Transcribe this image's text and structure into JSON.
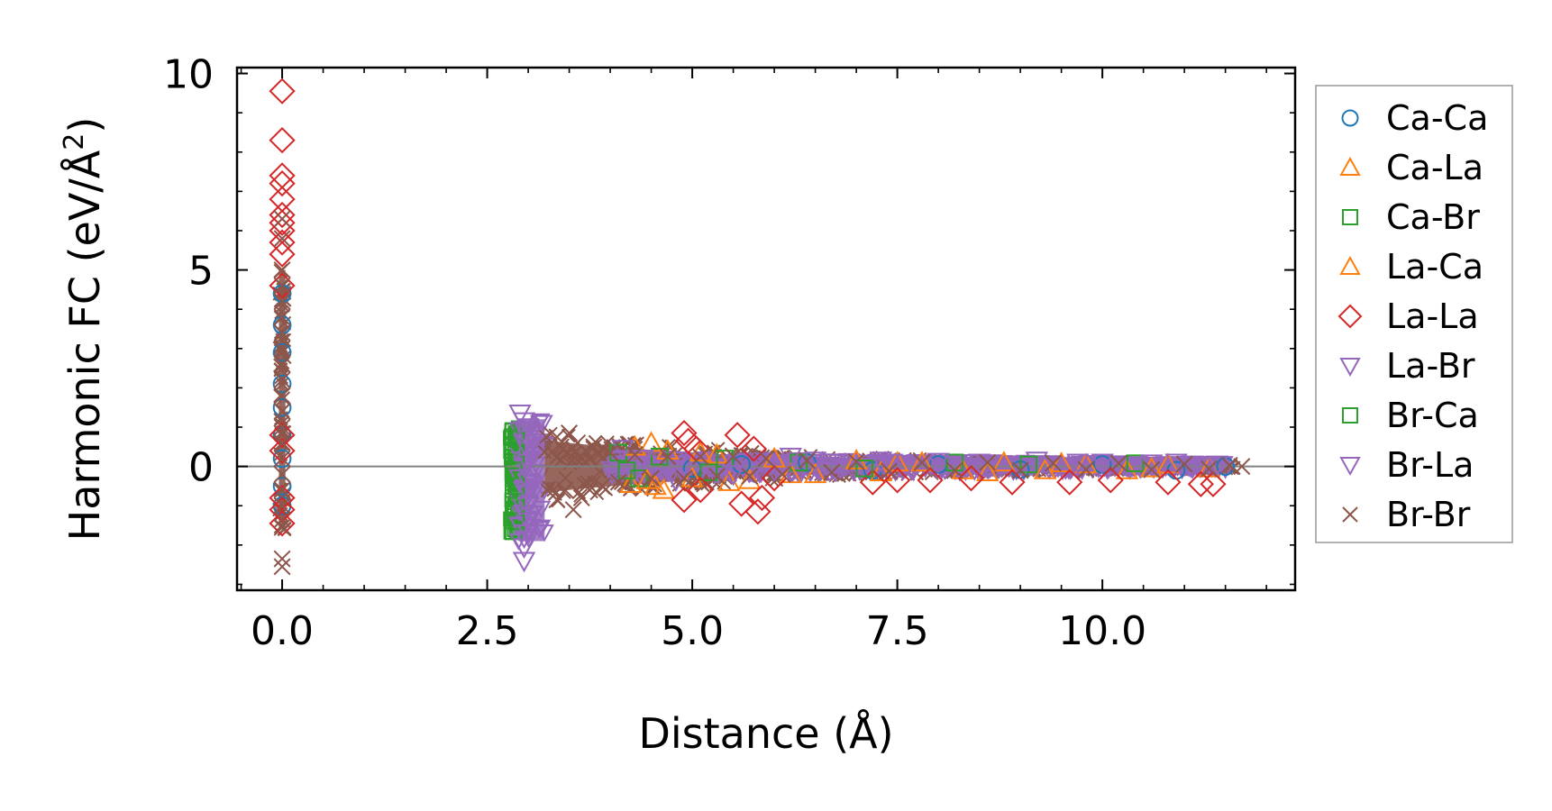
{
  "chart_data": {
    "type": "scatter",
    "title": "",
    "xlabel": "Distance (Å)",
    "ylabel_main": "Harmonic FC (eV/Å",
    "ylabel_sup": "2",
    "ylabel_close": ")",
    "xlim": [
      -0.55,
      12.35
    ],
    "ylim": [
      -3.15,
      10.15
    ],
    "xticks": [
      0.0,
      2.5,
      5.0,
      7.5,
      10.0
    ],
    "xtick_labels": [
      "0.0",
      "2.5",
      "5.0",
      "7.5",
      "10.0"
    ],
    "yticks": [
      0,
      5,
      10
    ],
    "ytick_labels": [
      "0",
      "5",
      "10"
    ],
    "xminor_step": 0.5,
    "yminor_step": 1,
    "zero_line": 0,
    "legend_position": "outside-right",
    "series": [
      {
        "name": "Ca-Ca",
        "marker": "circle",
        "color": "#1f77b4",
        "points": [
          [
            0,
            4.4
          ],
          [
            0,
            3.6
          ],
          [
            0,
            2.9
          ],
          [
            0,
            2.1
          ],
          [
            0,
            1.5
          ],
          [
            0,
            0.8
          ],
          [
            0,
            0.2
          ],
          [
            0,
            -0.5
          ],
          [
            0,
            -1.0
          ],
          [
            5.0,
            -0.05
          ],
          [
            5.6,
            0.05
          ],
          [
            6.4,
            0.1
          ],
          [
            7.2,
            -0.1
          ],
          [
            8.0,
            0.05
          ],
          [
            9.0,
            -0.08
          ],
          [
            10.0,
            0.05
          ],
          [
            10.9,
            -0.1
          ],
          [
            11.5,
            0.0
          ]
        ]
      },
      {
        "name": "Ca-La",
        "marker": "triangle-up",
        "color": "#ff7f0e",
        "points": [
          [
            4.25,
            -0.45
          ],
          [
            4.5,
            0.6
          ],
          [
            4.55,
            -0.5
          ],
          [
            4.7,
            0.4
          ],
          [
            5.0,
            -0.3
          ],
          [
            5.3,
            0.3
          ],
          [
            5.7,
            -0.35
          ],
          [
            6.0,
            0.2
          ],
          [
            6.5,
            -0.2
          ],
          [
            7.0,
            0.15
          ],
          [
            7.3,
            -0.15
          ],
          [
            7.8,
            0.1
          ],
          [
            8.3,
            -0.1
          ],
          [
            8.8,
            0.1
          ],
          [
            9.3,
            -0.1
          ],
          [
            9.8,
            0.05
          ],
          [
            10.3,
            -0.1
          ],
          [
            10.8,
            0.05
          ],
          [
            11.3,
            -0.05
          ]
        ]
      },
      {
        "name": "Ca-Br",
        "marker": "square",
        "color": "#2ca02c",
        "points": [
          [
            2.82,
            0.9
          ],
          [
            2.82,
            0.5
          ],
          [
            2.82,
            0.1
          ],
          [
            2.82,
            -0.3
          ],
          [
            2.82,
            -0.8
          ],
          [
            2.82,
            -1.2
          ],
          [
            2.82,
            -1.65
          ],
          [
            4.1,
            0.35
          ],
          [
            4.35,
            -0.3
          ],
          [
            4.6,
            0.25
          ],
          [
            5.2,
            -0.15
          ],
          [
            6.3,
            0.1
          ],
          [
            8.2,
            0.1
          ],
          [
            10.4,
            0.08
          ]
        ]
      },
      {
        "name": "La-Ca",
        "marker": "triangle-up",
        "color": "#ff7f0e",
        "points": [
          [
            4.3,
            0.5
          ],
          [
            4.45,
            -0.35
          ],
          [
            4.65,
            -0.6
          ],
          [
            5.1,
            0.35
          ],
          [
            5.45,
            -0.4
          ],
          [
            6.2,
            -0.2
          ],
          [
            7.5,
            0.1
          ],
          [
            8.6,
            -0.15
          ],
          [
            9.5,
            0.08
          ],
          [
            10.6,
            -0.05
          ]
        ]
      },
      {
        "name": "La-La",
        "marker": "diamond",
        "color": "#d62728",
        "points": [
          [
            0,
            9.55
          ],
          [
            0,
            8.3
          ],
          [
            0,
            7.4
          ],
          [
            0,
            7.2
          ],
          [
            0,
            6.8
          ],
          [
            0,
            6.4
          ],
          [
            0,
            6.2
          ],
          [
            0,
            6.0
          ],
          [
            0,
            5.7
          ],
          [
            0,
            5.4
          ],
          [
            0,
            4.6
          ],
          [
            0,
            0.8
          ],
          [
            0,
            0.4
          ],
          [
            0,
            -0.8
          ],
          [
            0,
            -1.1
          ],
          [
            0,
            -1.45
          ],
          [
            4.9,
            0.85
          ],
          [
            4.95,
            0.65
          ],
          [
            4.9,
            -0.85
          ],
          [
            5.05,
            0.45
          ],
          [
            5.1,
            -0.6
          ],
          [
            5.55,
            0.8
          ],
          [
            5.6,
            -0.95
          ],
          [
            5.75,
            0.45
          ],
          [
            5.8,
            -1.15
          ],
          [
            5.85,
            -0.8
          ],
          [
            6.0,
            -0.3
          ],
          [
            7.2,
            -0.4
          ],
          [
            7.5,
            -0.35
          ],
          [
            7.9,
            -0.35
          ],
          [
            8.4,
            -0.3
          ],
          [
            8.9,
            -0.4
          ],
          [
            9.6,
            -0.4
          ],
          [
            10.1,
            -0.35
          ],
          [
            10.8,
            -0.4
          ],
          [
            11.2,
            -0.45
          ],
          [
            11.35,
            -0.45
          ]
        ]
      },
      {
        "name": "La-Br",
        "marker": "triangle-down",
        "color": "#9467bd",
        "points": [
          [
            2.9,
            1.35
          ],
          [
            2.95,
            1.15
          ],
          [
            2.9,
            0.9
          ],
          [
            2.95,
            0.6
          ],
          [
            2.9,
            0.3
          ],
          [
            2.95,
            0.0
          ],
          [
            2.9,
            -0.3
          ],
          [
            2.95,
            -0.6
          ],
          [
            2.9,
            -0.9
          ],
          [
            2.95,
            -1.2
          ],
          [
            2.9,
            -1.5
          ],
          [
            2.95,
            -1.8
          ],
          [
            2.95,
            -2.05
          ],
          [
            2.95,
            -2.4
          ],
          [
            4.15,
            0.45
          ],
          [
            4.8,
            -0.35
          ],
          [
            6.2,
            0.25
          ],
          [
            7.3,
            0.15
          ],
          [
            8.5,
            0.1
          ],
          [
            9.2,
            0.15
          ],
          [
            10.0,
            0.1
          ],
          [
            10.9,
            0.1
          ],
          [
            11.4,
            0.05
          ]
        ]
      },
      {
        "name": "Br-Ca",
        "marker": "square",
        "color": "#2ca02c",
        "points": [
          [
            2.85,
            0.7
          ],
          [
            2.85,
            0.3
          ],
          [
            2.85,
            -0.5
          ],
          [
            2.85,
            -1.0
          ],
          [
            2.85,
            -1.4
          ],
          [
            4.2,
            -0.1
          ],
          [
            5.4,
            0.2
          ],
          [
            7.1,
            -0.05
          ],
          [
            9.1,
            0.05
          ]
        ]
      },
      {
        "name": "Br-La",
        "marker": "triangle-down",
        "color": "#9467bd",
        "points": [
          [
            3.0,
            1.0
          ],
          [
            3.0,
            0.7
          ],
          [
            3.0,
            0.4
          ],
          [
            3.0,
            0.1
          ],
          [
            3.0,
            -0.4
          ],
          [
            3.0,
            -0.7
          ],
          [
            3.0,
            -1.0
          ],
          [
            3.0,
            -1.4
          ],
          [
            3.0,
            -1.7
          ],
          [
            4.4,
            0.2
          ],
          [
            5.5,
            -0.2
          ],
          [
            6.5,
            0.15
          ],
          [
            7.4,
            0.1
          ],
          [
            8.0,
            0.12
          ],
          [
            9.7,
            0.1
          ],
          [
            10.6,
            0.08
          ],
          [
            11.1,
            0.05
          ]
        ]
      },
      {
        "name": "Br-Br",
        "marker": "x",
        "color": "#8c564b",
        "points": [
          [
            0,
            6.3
          ],
          [
            0,
            5.8
          ],
          [
            0,
            5.0
          ],
          [
            0,
            4.6
          ],
          [
            0,
            4.2
          ],
          [
            0,
            3.8
          ],
          [
            0,
            3.4
          ],
          [
            0,
            3.0
          ],
          [
            0,
            2.6
          ],
          [
            0,
            2.2
          ],
          [
            0,
            1.8
          ],
          [
            0,
            1.4
          ],
          [
            0,
            1.0
          ],
          [
            0,
            0.6
          ],
          [
            0,
            0.2
          ],
          [
            0,
            -0.2
          ],
          [
            0,
            -0.6
          ],
          [
            0,
            -1.0
          ],
          [
            0,
            -1.35
          ],
          [
            0,
            -1.55
          ],
          [
            0,
            -2.35
          ],
          [
            0,
            -2.55
          ],
          [
            3.35,
            0.75
          ],
          [
            3.35,
            -0.85
          ],
          [
            3.4,
            0.5
          ],
          [
            3.45,
            -0.6
          ],
          [
            3.5,
            0.85
          ],
          [
            3.55,
            -1.1
          ],
          [
            3.6,
            0.6
          ],
          [
            3.65,
            -0.8
          ],
          [
            3.7,
            0.4
          ],
          [
            3.75,
            -0.6
          ],
          [
            3.8,
            0.5
          ],
          [
            3.9,
            -0.5
          ],
          [
            4.0,
            0.35
          ],
          [
            4.1,
            -0.4
          ],
          [
            4.3,
            0.3
          ],
          [
            4.5,
            -0.3
          ],
          [
            4.7,
            0.25
          ],
          [
            4.9,
            -0.3
          ],
          [
            5.1,
            0.25
          ],
          [
            5.3,
            -0.25
          ],
          [
            5.5,
            0.25
          ],
          [
            5.7,
            -0.25
          ],
          [
            5.9,
            0.2
          ],
          [
            6.1,
            -0.2
          ],
          [
            6.4,
            0.15
          ],
          [
            6.7,
            -0.15
          ],
          [
            7.0,
            0.12
          ],
          [
            7.4,
            -0.12
          ],
          [
            7.8,
            0.1
          ],
          [
            8.2,
            -0.1
          ],
          [
            8.6,
            0.1
          ],
          [
            9.0,
            -0.1
          ],
          [
            9.4,
            0.08
          ],
          [
            9.8,
            -0.08
          ],
          [
            10.2,
            0.08
          ],
          [
            10.6,
            -0.08
          ],
          [
            11.0,
            0.06
          ],
          [
            11.3,
            -0.06
          ],
          [
            11.55,
            0.03
          ],
          [
            11.7,
            0.0
          ]
        ]
      }
    ],
    "bands": [
      {
        "series": "Br-Br",
        "color": "#8c564b",
        "x_start": 0,
        "x_end": 0,
        "y_low": -1.6,
        "y_high": 5.0,
        "width_units": 0.08
      },
      {
        "series": "Ca-Br",
        "color": "#2ca02c",
        "x_start": 2.78,
        "x_end": 2.88,
        "y_low": -1.7,
        "y_high": 1.0
      },
      {
        "series": "La-Br",
        "color": "#9467bd",
        "x_start": 2.88,
        "x_end": 3.2,
        "y_low": -1.9,
        "y_high": 1.2
      },
      {
        "series": "Br-Br",
        "color": "#8c564b",
        "profile": "decay",
        "x_start": 3.2,
        "x_end": 11.6,
        "amp_start": 0.95,
        "amp_end": 0.05
      },
      {
        "series": "La-Br",
        "color": "#9467bd",
        "profile": "decay",
        "x_start": 4.0,
        "x_end": 11.5,
        "amp_start": 0.25,
        "amp_end": 0.08
      }
    ]
  }
}
